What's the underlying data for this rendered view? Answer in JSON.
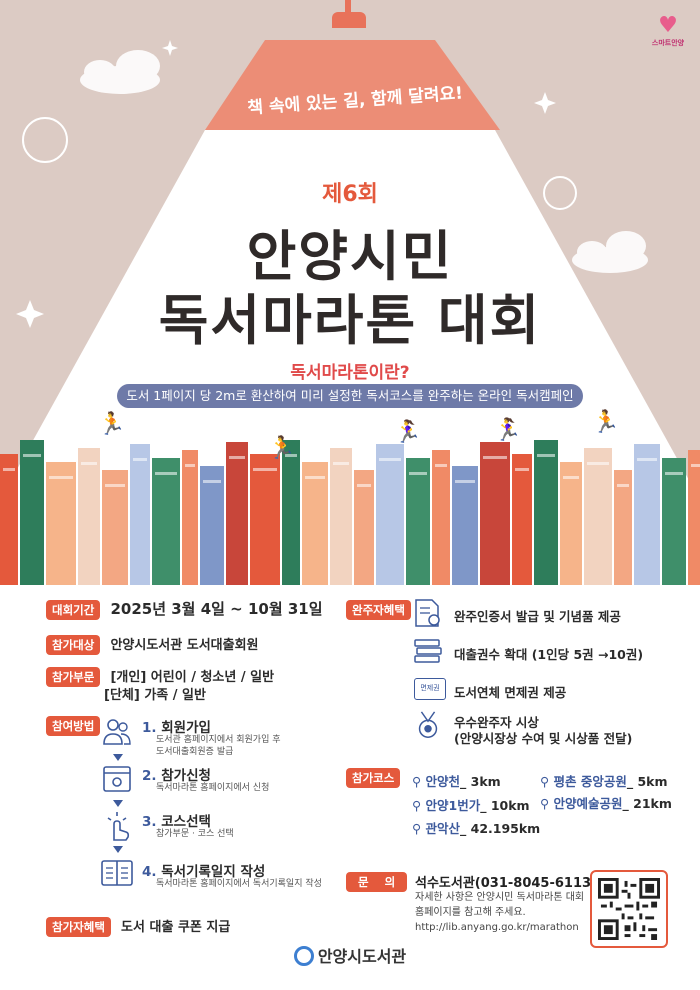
{
  "poster": {
    "tagline": "책 속에 있는 길, 함께 달려요!",
    "logo_text": "스마트안양",
    "round": "제6회",
    "title_line1": "안양시민",
    "title_line2": "독서마라톤 대회",
    "subtitle": "독서마라톤이란?",
    "description": "도서 1페이지 당 2m로 환산하여 미리 설정한 독서코스를 완주하는 온라인 독서캠페인"
  },
  "info": {
    "period_label": "대회기간",
    "period_value": "2025년 3월 4일 ~ 10월 31일",
    "target_label": "참가대상",
    "target_value": "안양시도서관 도서대출회원",
    "division_label": "참가부문",
    "division_line1": "[개인] 어린이 / 청소년 / 일반",
    "division_line2": "[단체] 가족 / 일반",
    "method_label": "참여방법",
    "participant_benefit_label": "참가자혜택",
    "participant_benefit_value": "도서 대출 쿠폰 지급"
  },
  "steps": [
    {
      "num": "1.",
      "title": "회원가입",
      "sub1": "도서관 홈페이지에서 회원가입 후",
      "sub2": "도서대출회원증 발급",
      "icon": "people-icon"
    },
    {
      "num": "2.",
      "title": "참가신청",
      "sub1": "독서마라톤 홈페이지에서 신청",
      "sub2": "",
      "icon": "browser-settings-icon"
    },
    {
      "num": "3.",
      "title": "코스선택",
      "sub1": "참가부문 · 코스 선택",
      "sub2": "",
      "icon": "click-hand-icon"
    },
    {
      "num": "4.",
      "title": "독서기록일지 작성",
      "sub1": "독서마라톤 홈페이지에서 독서기록일지 작성",
      "sub2": "",
      "icon": "open-book-icon"
    }
  ],
  "finisher": {
    "label": "완주자혜택",
    "items": [
      {
        "text": "완주인증서 발급 및 기념품 제공",
        "icon": "certificate-icon"
      },
      {
        "text": "대출권수 확대 (1인당 5권 →10권)",
        "icon": "book-stack-icon"
      },
      {
        "text": "도서연체 면제권 제공",
        "icon": "ticket-icon",
        "badge": "면제권"
      },
      {
        "text": "우수완주자 시상",
        "text2": "(안양시장상 수여 및 시상품 전달)",
        "icon": "medal-icon"
      }
    ]
  },
  "courses": {
    "label": "참가코스",
    "items": [
      {
        "name": "안양천",
        "dist": "_ 3km"
      },
      {
        "name": "평촌 중앙공원",
        "dist": "_ 5km"
      },
      {
        "name": "안양1번가",
        "dist": "_ 10km"
      },
      {
        "name": "안양예술공원",
        "dist": "_ 21km"
      },
      {
        "name": "관악산",
        "dist": "_ 42.195km"
      }
    ]
  },
  "contact": {
    "label": "문    의",
    "title": "석수도서관(031-8045-6113)",
    "line1": "자세한 사항은 안양시민 독서마라톤 대회",
    "line2": "홈페이지를 참고해 주세요.",
    "url": "http://lib.anyang.go.kr/marathon"
  },
  "footer": {
    "org": "안양시도서관"
  },
  "colors": {
    "background_top": "#dccbc4",
    "accent": "#e4593c",
    "title": "#2f2a29",
    "navy": "#3d5a9c",
    "pill": "#6e7aa8"
  }
}
